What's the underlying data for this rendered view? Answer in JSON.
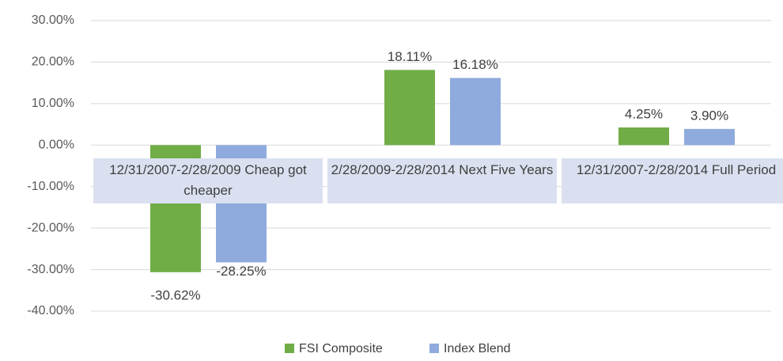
{
  "chart_data": {
    "type": "bar",
    "categories": [
      "12/31/2007-2/28/2009 Cheap got cheaper",
      "2/28/2009-2/28/2014 Next Five Years",
      "12/31/2007-2/28/2014 Full Period"
    ],
    "series": [
      {
        "name": "FSI Composite",
        "color": "#70ad47",
        "values": [
          -30.62,
          18.11,
          4.25
        ],
        "value_labels": [
          "-30.62%",
          "18.11%",
          "4.25%"
        ]
      },
      {
        "name": "Index Blend",
        "color": "#8faadc",
        "values": [
          -28.25,
          16.18,
          3.9
        ],
        "value_labels": [
          "-28.25%",
          "16.18%",
          "3.90%"
        ]
      }
    ],
    "ylim": [
      -40,
      30
    ],
    "yticks": [
      {
        "value": -40,
        "label": "-40.00%"
      },
      {
        "value": -30,
        "label": "-30.00%"
      },
      {
        "value": -20,
        "label": "-20.00%"
      },
      {
        "value": -10,
        "label": "-10.00%"
      },
      {
        "value": 0,
        "label": "0.00%"
      },
      {
        "value": 10,
        "label": "10.00%"
      },
      {
        "value": 20,
        "label": "20.00%"
      },
      {
        "value": 30,
        "label": "30.00%"
      }
    ],
    "grid": true,
    "legend": "bottom"
  }
}
